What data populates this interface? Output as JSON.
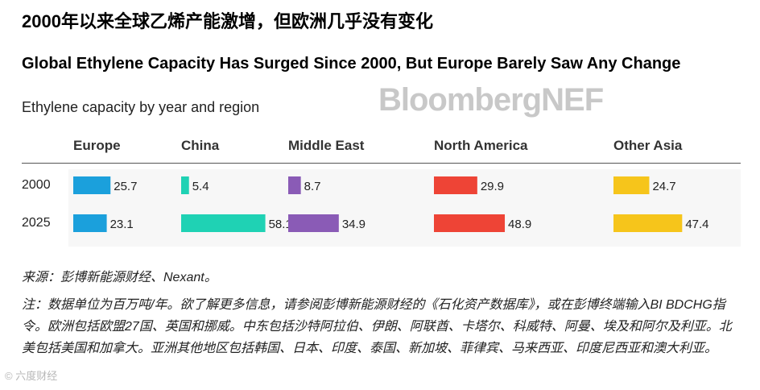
{
  "title_cn": "2000年以来全球乙烯产能激增，但欧洲几乎没有变化",
  "title_en": "Global Ethylene Capacity Has Surged Since 2000, But Europe Barely Saw Any Change",
  "subtitle": "Ethylene capacity by year and region",
  "brand": {
    "part1": "Bloomberg",
    "part2": "NEF"
  },
  "source": "来源：彭博新能源财经、Nexant。",
  "note": "注：数据单位为百万吨/年。欲了解更多信息，请参阅彭博新能源财经的《石化资产数据库》，或在彭博终端输入BI BDCHG指令。欧洲包括欧盟27国、英国和挪威。中东包括沙特阿拉伯、伊朗、阿联酋、卡塔尔、科威特、阿曼、埃及和阿尔及利亚。北美包括美国和加拿大。亚洲其他地区包括韩国、日本、印度、泰国、新加坡、菲律宾、马来西亚、印度尼西亚和澳大利亚。",
  "watermark": "© 六度财经",
  "chart_data": {
    "type": "bar",
    "orientation": "horizontal",
    "layout": "small-multiples",
    "categories": [
      "2000",
      "2025"
    ],
    "unit": "百万吨/年",
    "series": [
      {
        "name": "Europe",
        "color": "#1ba0dc",
        "values": [
          25.7,
          23.1
        ]
      },
      {
        "name": "China",
        "color": "#1fd2b4",
        "values": [
          5.4,
          58.1
        ]
      },
      {
        "name": "Middle East",
        "color": "#8a5bb6",
        "values": [
          8.7,
          34.9
        ]
      },
      {
        "name": "North America",
        "color": "#ee4436",
        "values": [
          29.9,
          48.9
        ]
      },
      {
        "name": "Other Asia",
        "color": "#f6c51b",
        "values": [
          24.7,
          47.4
        ]
      }
    ]
  }
}
